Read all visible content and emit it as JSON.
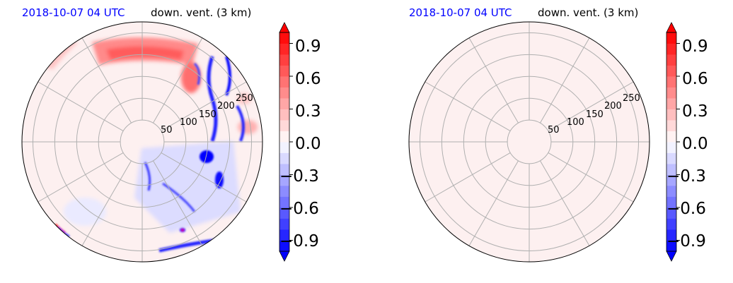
{
  "chart_data": [
    {
      "type": "heatmap",
      "projection": "polar",
      "date_label": "2018-10-07 04 UTC",
      "title": "down. vent. (3 km)",
      "r_ticks": [
        50,
        100,
        150,
        200,
        250
      ],
      "r_max": 275,
      "theta_gridlines_deg": [
        0,
        30,
        60,
        90,
        120,
        150,
        180,
        210,
        240,
        270,
        300,
        330
      ],
      "grid": true,
      "background_value": 0.05,
      "colormap": "bwr",
      "value_range": [
        -1.0,
        1.0
      ],
      "features": [
        {
          "sign": "positive",
          "value": 0.6,
          "region": "north arc"
        },
        {
          "sign": "positive",
          "value": 0.5,
          "region": "north-north-east"
        },
        {
          "sign": "negative",
          "value": -0.9,
          "region": "north-east filaments"
        },
        {
          "sign": "negative",
          "value": -0.9,
          "region": "east"
        },
        {
          "sign": "negative",
          "value": -0.9,
          "region": "south-east band"
        },
        {
          "sign": "negative",
          "value": -0.5,
          "region": "south"
        },
        {
          "sign": "positive",
          "value": 0.3,
          "region": "east rim"
        }
      ]
    },
    {
      "type": "heatmap",
      "projection": "polar",
      "date_label": "2018-10-07 04 UTC",
      "title": "down. vent. (3 km)",
      "r_ticks": [
        50,
        100,
        150,
        200,
        250
      ],
      "r_max": 275,
      "theta_gridlines_deg": [
        0,
        30,
        60,
        90,
        120,
        150,
        180,
        210,
        240,
        270,
        300,
        330
      ],
      "grid": true,
      "background_value": 0.05,
      "colormap": "bwr",
      "value_range": [
        -1.0,
        1.0
      ],
      "features": []
    }
  ],
  "colorbar": {
    "ticks": [
      "0.9",
      "0.6",
      "0.3",
      "0.0",
      "−0.3",
      "−0.6",
      "−0.9"
    ],
    "tick_values": [
      0.9,
      0.6,
      0.3,
      0.0,
      -0.3,
      -0.6,
      -0.9
    ],
    "levels": [
      -1.0,
      -0.9,
      -0.8,
      -0.7,
      -0.6,
      -0.5,
      -0.4,
      -0.3,
      -0.2,
      -0.1,
      0.0,
      0.1,
      0.2,
      0.3,
      0.4,
      0.5,
      0.6,
      0.7,
      0.8,
      0.9,
      1.0
    ],
    "extend": "both"
  },
  "colors": {
    "negative_max": "#0000ff",
    "neutral": "#ffffff",
    "positive_max": "#ff0000",
    "grid": "#b0b0b0",
    "date_text": "#0000ff"
  }
}
